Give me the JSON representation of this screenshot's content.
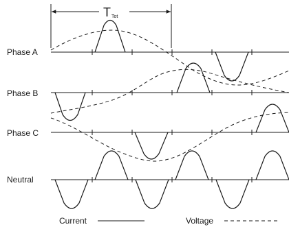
{
  "title": {
    "symbol": "T",
    "subscript": "Tot"
  },
  "rows": [
    {
      "id": "phase-a",
      "label": "Phase A"
    },
    {
      "id": "phase-b",
      "label": "Phase B"
    },
    {
      "id": "phase-c",
      "label": "Phase C"
    },
    {
      "id": "neutral",
      "label": "Neutral"
    }
  ],
  "legend": {
    "current_label": "Current",
    "voltage_label": "Voltage"
  }
}
